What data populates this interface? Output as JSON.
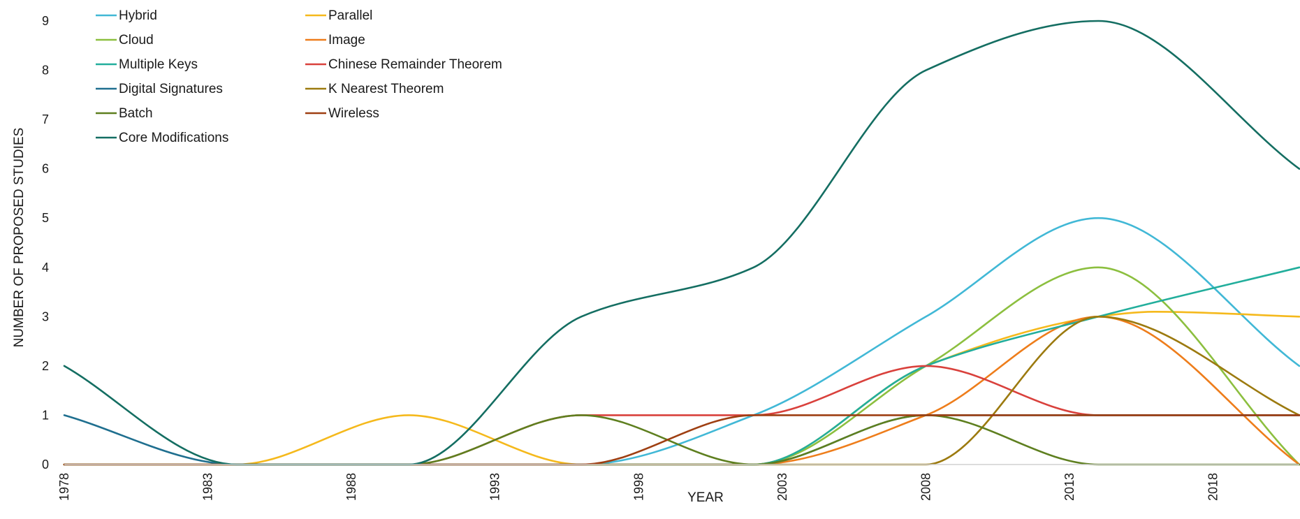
{
  "chart_data": {
    "type": "line",
    "title": "",
    "xlabel": "YEAR",
    "ylabel": "NUMBER OF PROPOSED STUDIES",
    "x_ticks": [
      "1978",
      "1983",
      "1988",
      "1993",
      "1998",
      "2003",
      "2008",
      "2013",
      "2018"
    ],
    "y_ticks": [
      "0",
      "1",
      "2",
      "3",
      "4",
      "5",
      "6",
      "7",
      "8",
      "9"
    ],
    "xlim": [
      1978,
      2021
    ],
    "ylim": [
      0,
      9
    ],
    "grid": false,
    "legend_position": "top-left",
    "series": [
      {
        "name": "Hybrid",
        "color": "#41B8D6",
        "points": [
          [
            1978,
            0
          ],
          [
            1984,
            0
          ],
          [
            1990,
            0
          ],
          [
            1996,
            0
          ],
          [
            2002,
            1
          ],
          [
            2008,
            3
          ],
          [
            2014,
            5
          ],
          [
            2021,
            2
          ]
        ]
      },
      {
        "name": "Parallel",
        "color": "#F5B91C",
        "points": [
          [
            1978,
            0
          ],
          [
            1984,
            0
          ],
          [
            1990,
            1
          ],
          [
            1996,
            0
          ],
          [
            2002,
            0
          ],
          [
            2008,
            2
          ],
          [
            2014,
            3
          ],
          [
            2016,
            3.1
          ],
          [
            2021,
            3
          ]
        ]
      },
      {
        "name": "Cloud",
        "color": "#8CBF3F",
        "points": [
          [
            1978,
            0
          ],
          [
            1984,
            0
          ],
          [
            1990,
            0
          ],
          [
            1996,
            0
          ],
          [
            2002,
            0
          ],
          [
            2008,
            2
          ],
          [
            2014,
            4
          ],
          [
            2021,
            0
          ]
        ]
      },
      {
        "name": "Image",
        "color": "#EE7D1B",
        "points": [
          [
            1978,
            0
          ],
          [
            1984,
            0
          ],
          [
            1990,
            0
          ],
          [
            1996,
            0
          ],
          [
            2002,
            0
          ],
          [
            2008,
            1
          ],
          [
            2014,
            3
          ],
          [
            2021,
            0
          ]
        ]
      },
      {
        "name": "Multiple Keys",
        "color": "#22AE9C",
        "points": [
          [
            1978,
            0
          ],
          [
            1984,
            0
          ],
          [
            1990,
            0
          ],
          [
            1996,
            0
          ],
          [
            2002,
            0
          ],
          [
            2008,
            2
          ],
          [
            2014,
            3
          ],
          [
            2021,
            4
          ]
        ]
      },
      {
        "name": "Chinese Remainder Theorem",
        "color": "#D9413C",
        "points": [
          [
            1978,
            0
          ],
          [
            1984,
            0
          ],
          [
            1990,
            0
          ],
          [
            1996,
            1
          ],
          [
            2002,
            1
          ],
          [
            2008,
            2
          ],
          [
            2014,
            1
          ],
          [
            2021,
            1
          ]
        ]
      },
      {
        "name": "Digital Signatures",
        "color": "#1F6F8F",
        "points": [
          [
            1978,
            1
          ],
          [
            1984,
            0
          ],
          [
            1990,
            0
          ],
          [
            1996,
            0
          ],
          [
            2002,
            0
          ],
          [
            2008,
            1
          ],
          [
            2014,
            1
          ],
          [
            2021,
            1
          ]
        ]
      },
      {
        "name": "K Nearest Theorem",
        "color": "#9C7A0F",
        "points": [
          [
            1978,
            0
          ],
          [
            1984,
            0
          ],
          [
            1990,
            0
          ],
          [
            1996,
            0
          ],
          [
            2002,
            0
          ],
          [
            2008,
            0
          ],
          [
            2014,
            3
          ],
          [
            2021,
            1
          ]
        ]
      },
      {
        "name": "Batch",
        "color": "#5E7F1F",
        "points": [
          [
            1978,
            0
          ],
          [
            1984,
            0
          ],
          [
            1990,
            0
          ],
          [
            1996,
            1
          ],
          [
            2002,
            0
          ],
          [
            2008,
            1
          ],
          [
            2014,
            0
          ],
          [
            2021,
            0
          ]
        ]
      },
      {
        "name": "Wireless",
        "color": "#9E3F12",
        "points": [
          [
            1978,
            0
          ],
          [
            1984,
            0
          ],
          [
            1990,
            0
          ],
          [
            1996,
            0
          ],
          [
            2002,
            1
          ],
          [
            2008,
            1
          ],
          [
            2014,
            1
          ],
          [
            2021,
            1
          ]
        ]
      },
      {
        "name": "Core Modifications",
        "color": "#146E62",
        "points": [
          [
            1978,
            2
          ],
          [
            1984,
            0
          ],
          [
            1990,
            0
          ],
          [
            1996,
            3
          ],
          [
            2002,
            4
          ],
          [
            2008,
            8
          ],
          [
            2014,
            9
          ],
          [
            2021,
            6
          ]
        ]
      }
    ]
  }
}
